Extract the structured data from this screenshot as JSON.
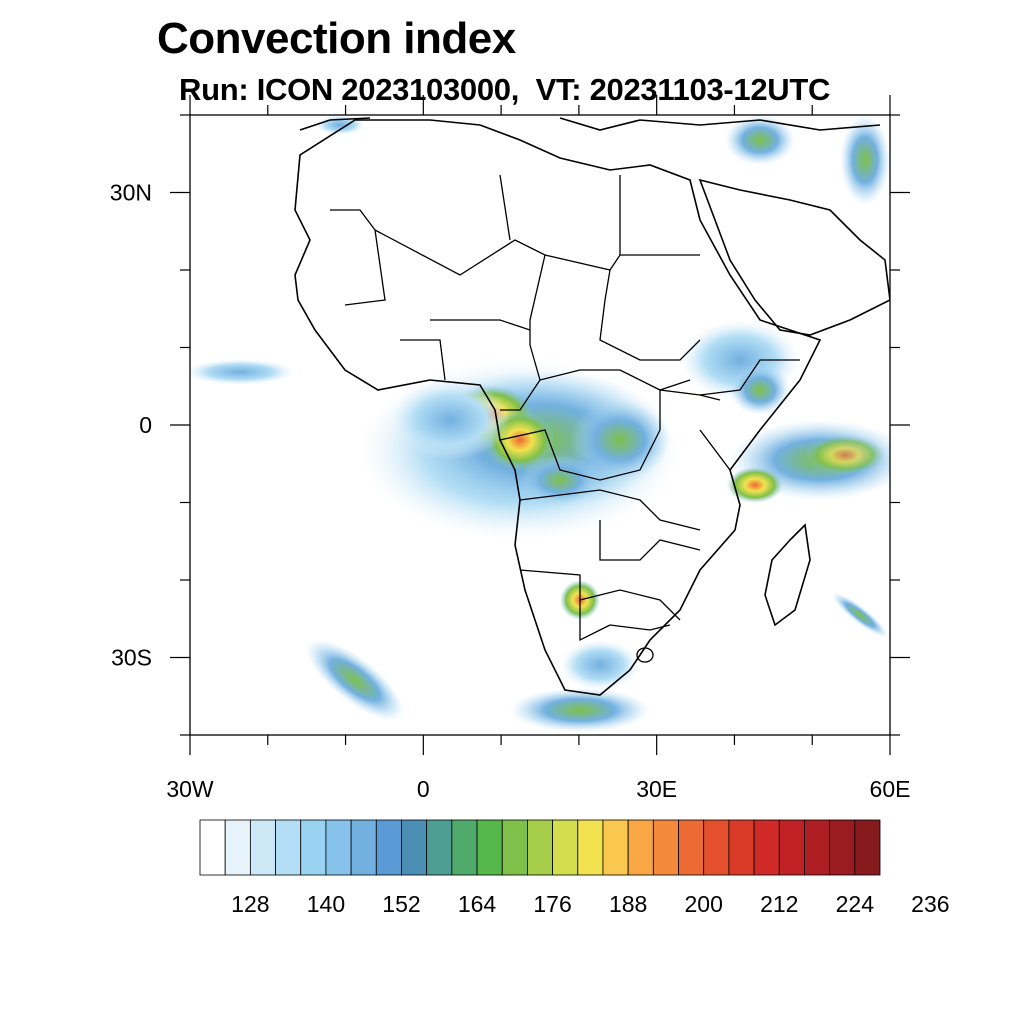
{
  "title": "Convection index",
  "subtitle": "Run: ICON 2023103000,  VT: 20231103-12UTC",
  "map": {
    "region": "Africa",
    "lon_range": [
      -30,
      60
    ],
    "lat_range": [
      -40,
      40
    ],
    "lat_ticks": [
      {
        "value": 30,
        "label": "30N"
      },
      {
        "value": 0,
        "label": "0"
      },
      {
        "value": -30,
        "label": "30S"
      }
    ],
    "lon_ticks": [
      {
        "value": -30,
        "label": "30W"
      },
      {
        "value": 0,
        "label": "0"
      },
      {
        "value": 30,
        "label": "30E"
      },
      {
        "value": 60,
        "label": "60E"
      }
    ]
  },
  "colorbar": {
    "colors": [
      "#ffffff",
      "#e6f3fb",
      "#cce8f7",
      "#b3def5",
      "#9ad3f2",
      "#86c2ea",
      "#72b0e0",
      "#5b9bd5",
      "#4c8fb4",
      "#4f9e93",
      "#4faa6b",
      "#56b84b",
      "#7ec04a",
      "#a6ce4a",
      "#d2de4e",
      "#f2e24f",
      "#f9c84c",
      "#f7a744",
      "#f2893b",
      "#ec6a33",
      "#e4502d",
      "#da3b29",
      "#cf2a26",
      "#c02224",
      "#ad1f22",
      "#9a1c20",
      "#861a1d"
    ],
    "labels": [
      "128",
      "140",
      "152",
      "164",
      "176",
      "188",
      "200",
      "212",
      "224",
      "236"
    ]
  }
}
